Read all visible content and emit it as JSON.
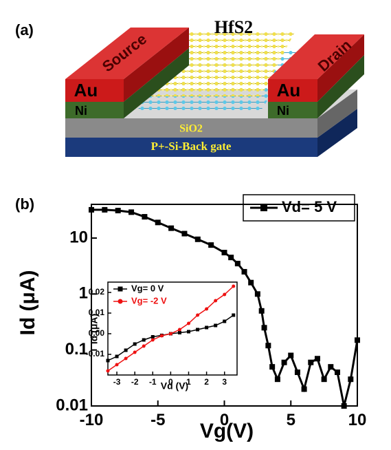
{
  "panels": {
    "a": "(a)",
    "b": "(b)"
  },
  "diagram": {
    "material": "HfS2",
    "source": "Source",
    "drain": "Drain",
    "source_metal": "Au",
    "drain_metal": "Au",
    "source_adhesion": "Ni",
    "drain_adhesion": "Ni",
    "dielectric": "SiO2",
    "gate": "P+-Si-Back gate"
  },
  "chart_data": [
    {
      "type": "line",
      "log_y": true,
      "xlabel": "Vg(V)",
      "ylabel": "Id (μA)",
      "legend": "upper right",
      "x": [
        -10,
        -9,
        -8,
        -7,
        -6,
        -5,
        -4,
        -3,
        -2,
        -1,
        0,
        0.5,
        1,
        1.5,
        2,
        2.5,
        2.8,
        3,
        3.3,
        3.6,
        4,
        4.5,
        5,
        5.5,
        6,
        6.5,
        7,
        7.5,
        8,
        8.5,
        9,
        9.5,
        10
      ],
      "series": [
        {
          "name": "Vd= 5 V",
          "color": "#000000",
          "marker": "square",
          "values": [
            32,
            32,
            31,
            29,
            24,
            19,
            15,
            12,
            9.5,
            7.5,
            5.5,
            4.5,
            3.5,
            2.5,
            1.6,
            1.0,
            0.5,
            0.25,
            0.12,
            0.05,
            0.03,
            0.06,
            0.08,
            0.04,
            0.02,
            0.06,
            0.07,
            0.03,
            0.05,
            0.04,
            0.01,
            0.03,
            0.15
          ]
        }
      ],
      "xlim": [
        -10,
        10
      ],
      "ylim": [
        0.01,
        40
      ],
      "xticks": [
        -10,
        -5,
        0,
        5,
        10
      ],
      "yticks": [
        0.01,
        0.1,
        1,
        10
      ]
    },
    {
      "type": "line",
      "log_y": false,
      "xlabel": "Vd (V)",
      "ylabel": "Id (μA)",
      "legend": "upper left",
      "x": [
        -3.5,
        -3,
        -2.5,
        -2,
        -1.5,
        -1,
        -0.5,
        0,
        0.5,
        1,
        1.5,
        2,
        2.5,
        3,
        3.5
      ],
      "series": [
        {
          "name": "Vg= 0 V",
          "color": "#000000",
          "marker": "square",
          "values": [
            -0.013,
            -0.011,
            -0.008,
            -0.005,
            -0.003,
            -0.0015,
            -0.0008,
            0,
            0.0005,
            0.001,
            0.002,
            0.003,
            0.004,
            0.006,
            0.009
          ]
        },
        {
          "name": "Vg= -2 V",
          "color": "#ee1111",
          "marker": "circle",
          "values": [
            -0.018,
            -0.015,
            -0.012,
            -0.009,
            -0.006,
            -0.003,
            -0.001,
            0,
            0.002,
            0.005,
            0.009,
            0.012,
            0.016,
            0.019,
            0.023
          ]
        }
      ],
      "xlim": [
        -3.5,
        3.7
      ],
      "ylim": [
        -0.02,
        0.025
      ],
      "xticks": [
        -3,
        -2,
        -1,
        0,
        1,
        2,
        3
      ],
      "yticks": [
        -0.01,
        {
          "value": 0,
          "label": "0.00"
        },
        0.01,
        0.02
      ]
    }
  ]
}
